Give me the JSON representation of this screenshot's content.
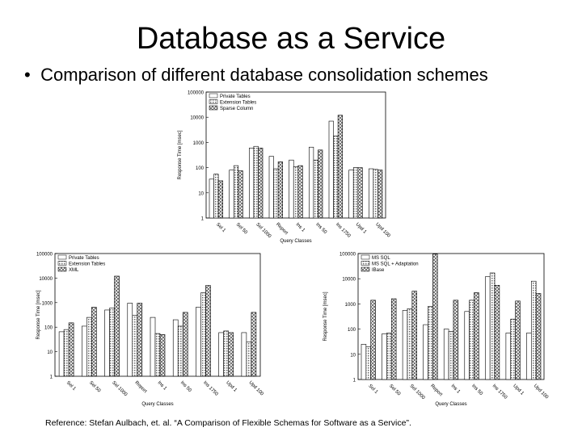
{
  "slide": {
    "title": "Database as a Service",
    "bullet_symbol": "•",
    "bullet_text": "Comparison of different database consolidation schemes",
    "reference": "Reference: Stefan Aulbach, et. al. “A Comparison of Flexible Schemas for Software as a Service”."
  },
  "chart_data": [
    {
      "type": "bar",
      "log_scale": true,
      "ylim": [
        1,
        100000
      ],
      "ylabel": "Response Time [msec]",
      "xlabel": "Query Classes",
      "ytick_labels": [
        "1",
        "10",
        "100",
        "1000",
        "10000",
        "100000"
      ],
      "categories": [
        "Sel 1",
        "Sel 50",
        "Sel 1000",
        "Report",
        "Ins 1",
        "Ins 50",
        "Ins 1750",
        "Upd 1",
        "Upd 100"
      ],
      "legend_position": "top-left",
      "colors": [
        "#ffffff",
        "#c8c8c8",
        "#9a9a9a"
      ],
      "series": [
        {
          "name": "Private Tables",
          "values": [
            35,
            80,
            600,
            280,
            200,
            650,
            7000,
            80,
            90
          ]
        },
        {
          "name": "Extension Tables",
          "values": [
            55,
            120,
            700,
            90,
            110,
            200,
            1800,
            100,
            85
          ]
        },
        {
          "name": "Sparse Column",
          "values": [
            30,
            75,
            600,
            170,
            120,
            500,
            12000,
            100,
            80
          ]
        }
      ]
    },
    {
      "type": "bar",
      "log_scale": true,
      "ylim": [
        1,
        100000
      ],
      "ylabel": "Response Time [msec]",
      "xlabel": "Query Classes",
      "ytick_labels": [
        "1",
        "10",
        "100",
        "1000",
        "10000",
        "100000"
      ],
      "categories": [
        "Sel 1",
        "Sel 50",
        "Sel 1000",
        "Report",
        "Ins 1",
        "Ins 50",
        "Ins 1750",
        "Upd 1",
        "Upd 100"
      ],
      "legend_position": "top-left",
      "colors": [
        "#ffffff",
        "#c8c8c8",
        "#9a9a9a"
      ],
      "series": [
        {
          "name": "Private Tables",
          "values": [
            65,
            110,
            500,
            950,
            250,
            200,
            650,
            60,
            60
          ]
        },
        {
          "name": "Extension Tables",
          "values": [
            80,
            250,
            600,
            300,
            55,
            110,
            2500,
            70,
            25
          ]
        },
        {
          "name": "XML",
          "values": [
            150,
            650,
            12000,
            950,
            50,
            400,
            5000,
            60,
            400
          ]
        }
      ]
    },
    {
      "type": "bar",
      "log_scale": true,
      "ylim": [
        1,
        100000
      ],
      "ylabel": "Response Time [msec]",
      "xlabel": "Query Classes",
      "ytick_labels": [
        "1",
        "10",
        "100",
        "1000",
        "10000",
        "100000"
      ],
      "categories": [
        "Sel 1",
        "Sel 50",
        "Sel 1000",
        "Report",
        "Ins 1",
        "Ins 50",
        "Ins 1750",
        "Upd 1",
        "Upd 100"
      ],
      "legend_position": "top-left",
      "colors": [
        "#ffffff",
        "#c8c8c8",
        "#9a9a9a"
      ],
      "series": [
        {
          "name": "MS SQL",
          "values": [
            25,
            65,
            550,
            150,
            100,
            500,
            12000,
            70,
            70
          ]
        },
        {
          "name": "MS SQL + Adaptation",
          "values": [
            20,
            70,
            650,
            800,
            80,
            1400,
            17000,
            250,
            8000
          ]
        },
        {
          "name": "IBase",
          "values": [
            1400,
            1600,
            3200,
            95000,
            1400,
            2800,
            5500,
            1300,
            2600
          ]
        }
      ]
    }
  ]
}
